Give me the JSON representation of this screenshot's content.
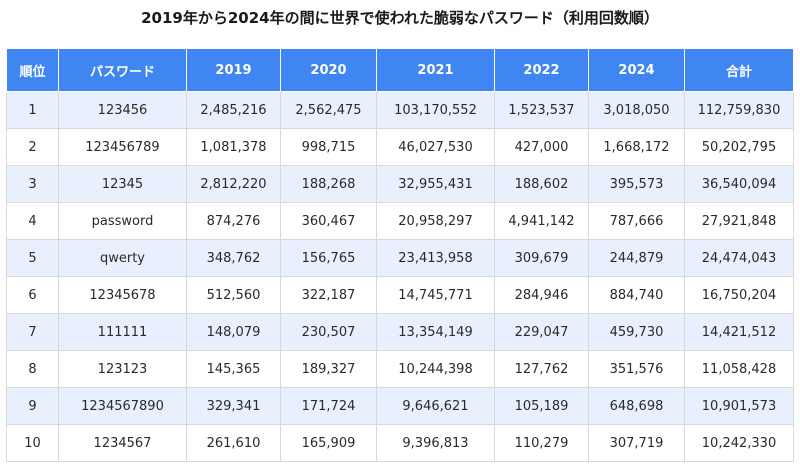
{
  "title": "2019年から2024年の間に世界で使われた脆弱なパスワード（利用回数順）",
  "columns": [
    "順位",
    "パスワード",
    "2019",
    "2020",
    "2021",
    "2022",
    "2024",
    "合計"
  ],
  "rows": [
    [
      "1",
      "123456",
      "2,485,216",
      "2,562,475",
      "103,170,552",
      "1,523,537",
      "3,018,050",
      "112,759,830"
    ],
    [
      "2",
      "123456789",
      "1,081,378",
      "998,715",
      "46,027,530",
      "427,000",
      "1,668,172",
      "50,202,795"
    ],
    [
      "3",
      "12345",
      "2,812,220",
      "188,268",
      "32,955,431",
      "188,602",
      "395,573",
      "36,540,094"
    ],
    [
      "4",
      "password",
      "874,276",
      "360,467",
      "20,958,297",
      "4,941,142",
      "787,666",
      "27,921,848"
    ],
    [
      "5",
      "qwerty",
      "348,762",
      "156,765",
      "23,413,958",
      "309,679",
      "244,879",
      "24,474,043"
    ],
    [
      "6",
      "12345678",
      "512,560",
      "322,187",
      "14,745,771",
      "284,946",
      "884,740",
      "16,750,204"
    ],
    [
      "7",
      "111111",
      "148,079",
      "230,507",
      "13,354,149",
      "229,047",
      "459,730",
      "14,421,512"
    ],
    [
      "8",
      "123123",
      "145,365",
      "189,327",
      "10,244,398",
      "127,762",
      "351,576",
      "11,058,428"
    ],
    [
      "9",
      "1234567890",
      "329,341",
      "171,724",
      "9,646,621",
      "105,189",
      "648,698",
      "10,901,573"
    ],
    [
      "10",
      "1234567",
      "261,610",
      "165,909",
      "9,396,813",
      "110,279",
      "307,719",
      "10,242,330"
    ]
  ],
  "colors": {
    "header_bg": "#3f86f2",
    "header_text": "#ffffff",
    "row_alt_bg": "#e8f0fd",
    "row_bg": "#ffffff"
  }
}
